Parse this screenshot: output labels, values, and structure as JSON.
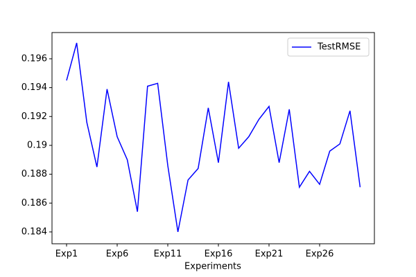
{
  "chart_data": {
    "type": "line",
    "xlabel": "Experiments",
    "categories": [
      "Exp1",
      null,
      null,
      null,
      null,
      "Exp6",
      null,
      null,
      null,
      null,
      "Exp11",
      null,
      null,
      null,
      null,
      "Exp16",
      null,
      null,
      null,
      null,
      "Exp21",
      null,
      null,
      null,
      null,
      "Exp26",
      null,
      null,
      null,
      null
    ],
    "series": [
      {
        "name": "TestRMSE",
        "color": "#0000ff",
        "values": [
          0.1945,
          0.1971,
          0.1916,
          0.1885,
          0.1939,
          0.1906,
          0.189,
          0.1854,
          0.1941,
          0.1943,
          0.1886,
          0.184,
          0.1876,
          0.1884,
          0.1926,
          0.1888,
          0.1944,
          0.1898,
          0.1906,
          0.1918,
          0.1927,
          0.1888,
          0.1925,
          0.1871,
          0.1882,
          0.1873,
          0.1896,
          0.1901,
          0.1924,
          0.1871
        ]
      }
    ],
    "ylim": [
      0.18318,
      0.19782
    ],
    "yticks": [
      0.184,
      0.186,
      0.188,
      0.19,
      0.192,
      0.194,
      0.196
    ],
    "legend": "upper right"
  }
}
